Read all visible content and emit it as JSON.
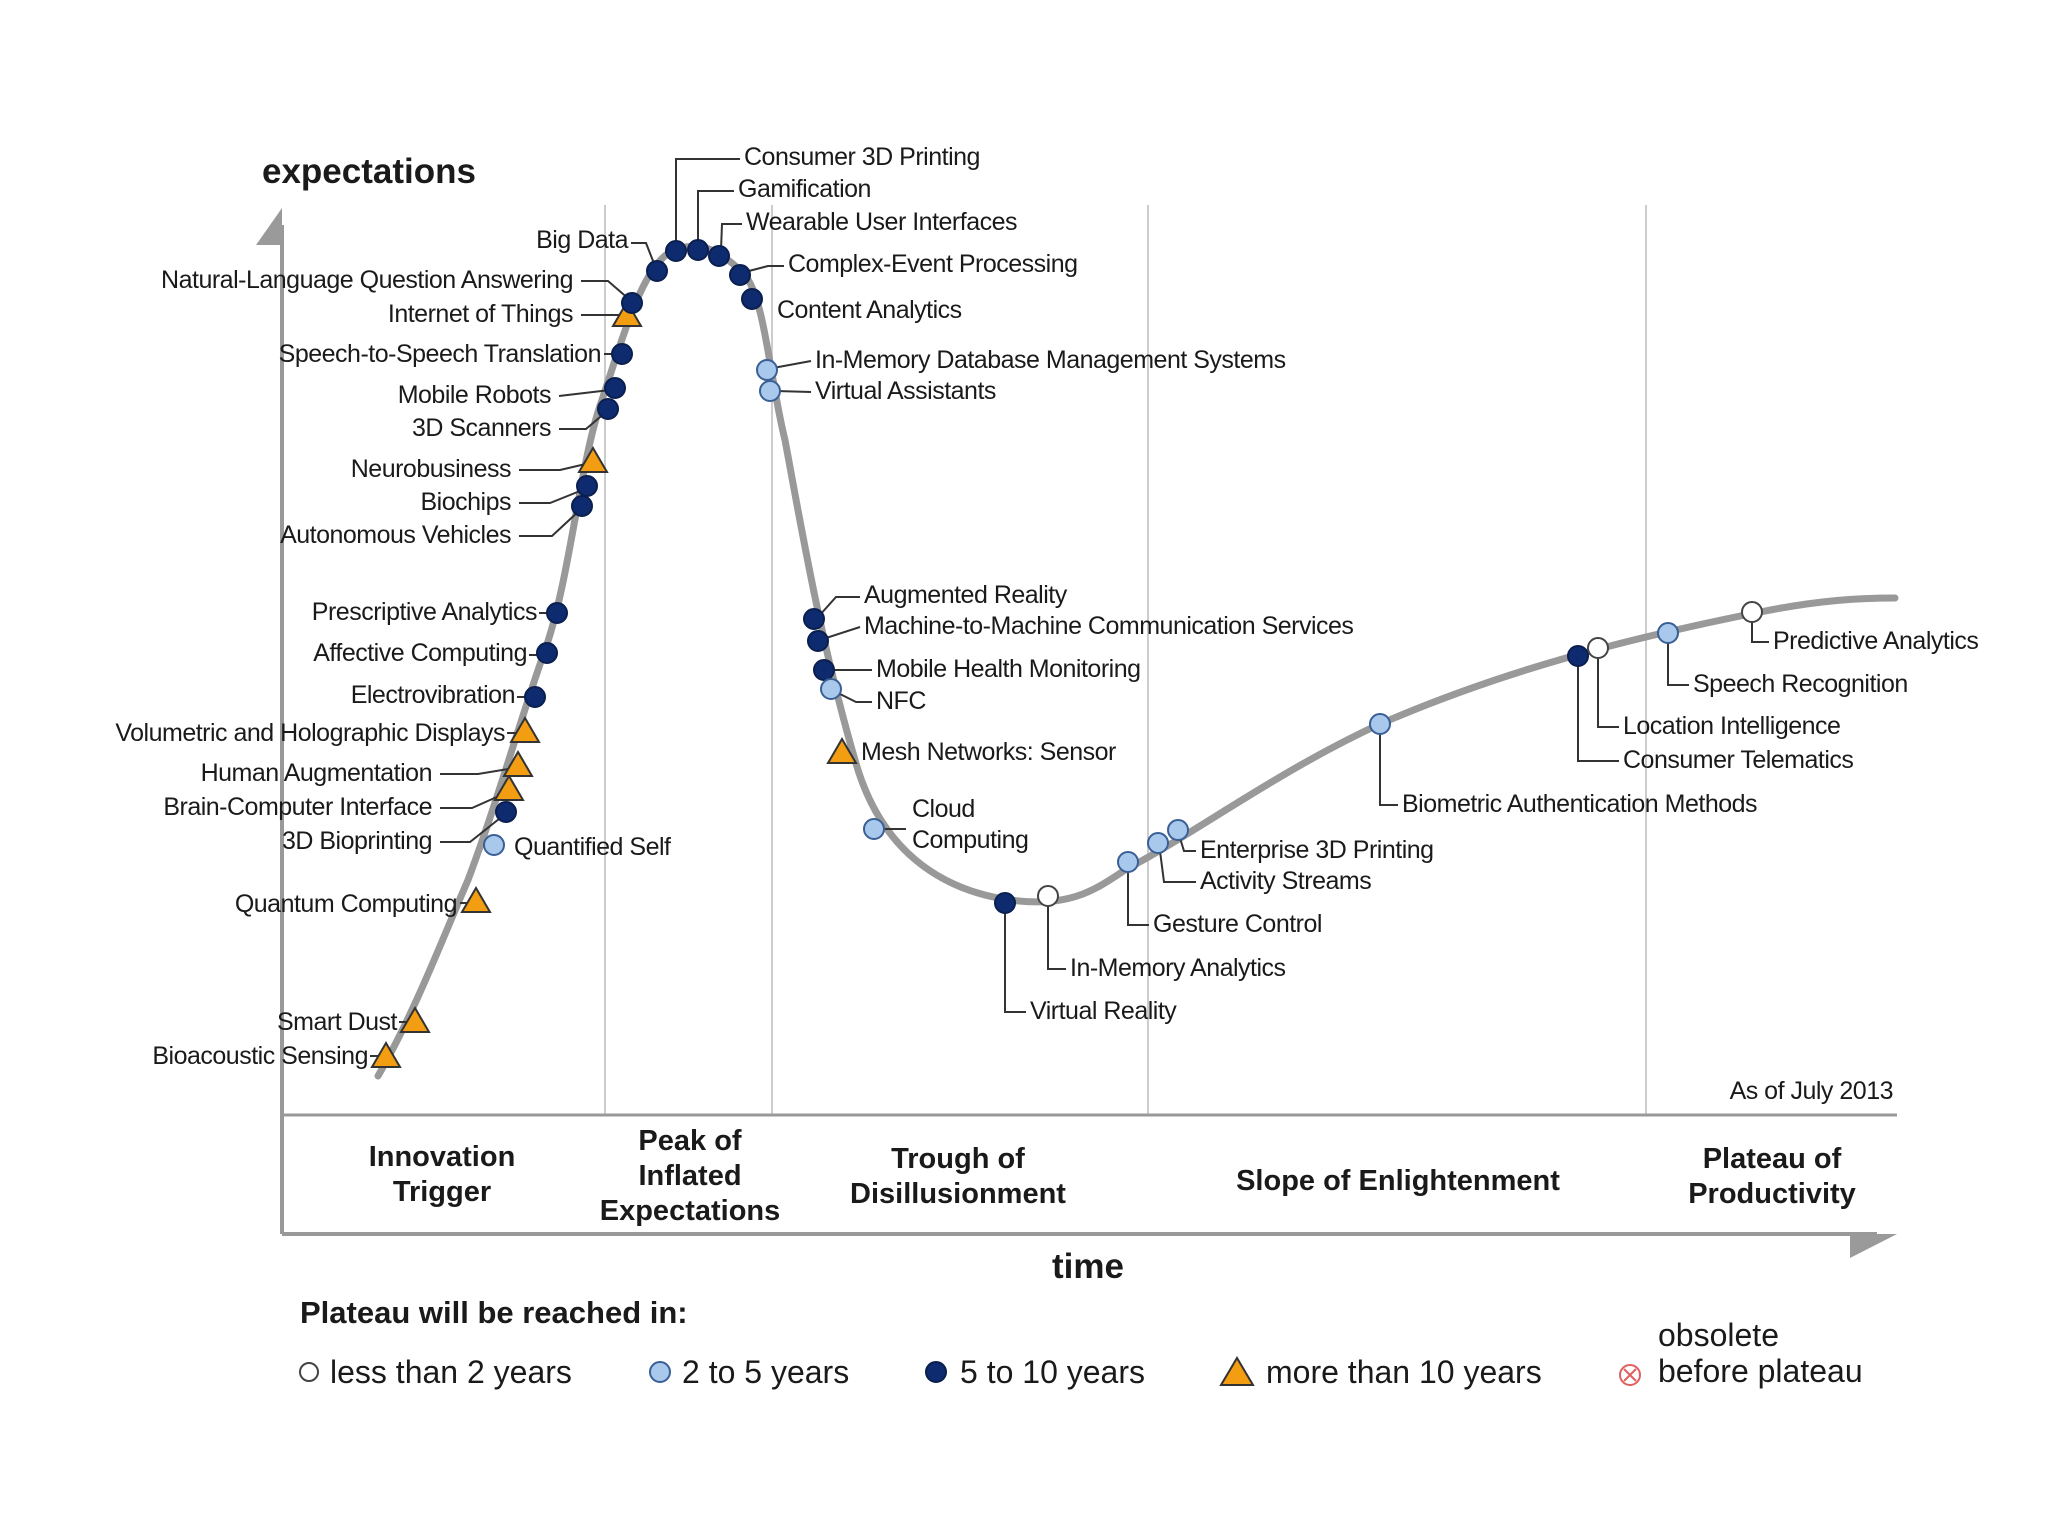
{
  "chart_data": {
    "type": "hype-cycle",
    "title": "",
    "xlabel": "time",
    "ylabel": "expectations",
    "as_of": "As of July 2013",
    "phases": [
      {
        "lines": [
          "Innovation",
          "Trigger"
        ]
      },
      {
        "lines": [
          "Peak of",
          "Inflated",
          "Expectations"
        ]
      },
      {
        "lines": [
          "Trough of",
          "Disillusionment"
        ]
      },
      {
        "lines": [
          "Slope of Enlightenment"
        ]
      },
      {
        "lines": [
          "Plateau of",
          "Productivity"
        ]
      }
    ],
    "legend": {
      "title": "Plateau will be reached in:",
      "items": [
        {
          "category": "lt2",
          "label": "less than 2 years",
          "color": "#ffffff"
        },
        {
          "category": "2to5",
          "label": "2 to 5 years",
          "color": "#a8c8ec"
        },
        {
          "category": "5to10",
          "label": "5 to 10 years",
          "color": "#0d2b6e"
        },
        {
          "category": "gt10",
          "label": "more than 10 years",
          "color": "#f29d12"
        },
        {
          "category": "obsolete",
          "label_lines": [
            "obsolete",
            "before plateau"
          ],
          "color": "#e06060"
        }
      ]
    },
    "technologies": [
      {
        "name": "Bioacoustic Sensing",
        "category": "gt10"
      },
      {
        "name": "Smart Dust",
        "category": "gt10"
      },
      {
        "name": "Quantum Computing",
        "category": "gt10"
      },
      {
        "name": "Quantified Self",
        "category": "2to5"
      },
      {
        "name": "3D Bioprinting",
        "category": "5to10"
      },
      {
        "name": "Brain-Computer Interface",
        "category": "gt10"
      },
      {
        "name": "Human Augmentation",
        "category": "gt10"
      },
      {
        "name": "Volumetric and Holographic Displays",
        "category": "gt10"
      },
      {
        "name": "Electrovibration",
        "category": "5to10"
      },
      {
        "name": "Affective Computing",
        "category": "5to10"
      },
      {
        "name": "Prescriptive Analytics",
        "category": "5to10"
      },
      {
        "name": "Autonomous Vehicles",
        "category": "5to10"
      },
      {
        "name": "Biochips",
        "category": "5to10"
      },
      {
        "name": "Neurobusiness",
        "category": "gt10"
      },
      {
        "name": "3D Scanners",
        "category": "5to10"
      },
      {
        "name": "Mobile Robots",
        "category": "5to10"
      },
      {
        "name": "Speech-to-Speech Translation",
        "category": "5to10"
      },
      {
        "name": "Internet of Things",
        "category": "gt10"
      },
      {
        "name": "Natural-Language Question Answering",
        "category": "5to10"
      },
      {
        "name": "Big Data",
        "category": "5to10"
      },
      {
        "name": "Consumer 3D Printing",
        "category": "5to10"
      },
      {
        "name": "Gamification",
        "category": "5to10"
      },
      {
        "name": "Wearable User Interfaces",
        "category": "5to10"
      },
      {
        "name": "Complex-Event Processing",
        "category": "5to10"
      },
      {
        "name": "Content Analytics",
        "category": "5to10"
      },
      {
        "name": "In-Memory Database Management Systems",
        "category": "2to5"
      },
      {
        "name": "Virtual Assistants",
        "category": "2to5"
      },
      {
        "name": "Augmented Reality",
        "category": "5to10"
      },
      {
        "name": "Machine-to-Machine Communication Services",
        "category": "5to10"
      },
      {
        "name": "Mobile Health Monitoring",
        "category": "5to10"
      },
      {
        "name": "NFC",
        "category": "2to5"
      },
      {
        "name": "Mesh Networks: Sensor",
        "category": "gt10"
      },
      {
        "name": "Cloud Computing",
        "category": "2to5",
        "label_lines": [
          "Cloud",
          "Computing"
        ]
      },
      {
        "name": "Virtual Reality",
        "category": "5to10"
      },
      {
        "name": "In-Memory Analytics",
        "category": "lt2"
      },
      {
        "name": "Gesture Control",
        "category": "2to5"
      },
      {
        "name": "Activity Streams",
        "category": "2to5"
      },
      {
        "name": "Enterprise 3D Printing",
        "category": "2to5"
      },
      {
        "name": "Biometric Authentication Methods",
        "category": "2to5"
      },
      {
        "name": "Consumer Telematics",
        "category": "5to10"
      },
      {
        "name": "Location Intelligence",
        "category": "lt2"
      },
      {
        "name": "Speech Recognition",
        "category": "2to5"
      },
      {
        "name": "Predictive Analytics",
        "category": "lt2"
      }
    ]
  }
}
